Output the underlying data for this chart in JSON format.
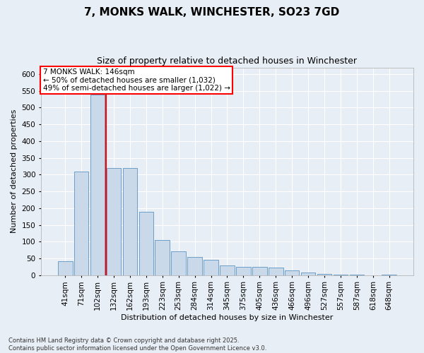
{
  "title": "7, MONKS WALK, WINCHESTER, SO23 7GD",
  "subtitle": "Size of property relative to detached houses in Winchester",
  "xlabel": "Distribution of detached houses by size in Winchester",
  "ylabel": "Number of detached properties",
  "footnote": "Contains HM Land Registry data © Crown copyright and database right 2025.\nContains public sector information licensed under the Open Government Licence v3.0.",
  "annotation_line1": "7 MONKS WALK: 146sqm",
  "annotation_line2": "← 50% of detached houses are smaller (1,032)",
  "annotation_line3": "49% of semi-detached houses are larger (1,022) →",
  "bar_color": "#c9d9ea",
  "bar_edge_color": "#6b9ec8",
  "redline_x": 2.5,
  "categories": [
    "41sqm",
    "71sqm",
    "102sqm",
    "132sqm",
    "162sqm",
    "193sqm",
    "223sqm",
    "253sqm",
    "284sqm",
    "314sqm",
    "345sqm",
    "375sqm",
    "405sqm",
    "436sqm",
    "466sqm",
    "496sqm",
    "527sqm",
    "557sqm",
    "587sqm",
    "618sqm",
    "648sqm"
  ],
  "values": [
    42,
    310,
    540,
    320,
    320,
    190,
    105,
    70,
    55,
    45,
    28,
    24,
    25,
    22,
    15,
    8,
    4,
    2,
    1,
    0,
    2
  ],
  "ylim": [
    0,
    620
  ],
  "yticks": [
    0,
    50,
    100,
    150,
    200,
    250,
    300,
    350,
    400,
    450,
    500,
    550,
    600
  ],
  "background_color": "#e8eef5",
  "plot_bg_color": "#e8eef5",
  "grid_color": "#ffffff",
  "title_fontsize": 11,
  "subtitle_fontsize": 9,
  "xlabel_fontsize": 8,
  "ylabel_fontsize": 8,
  "tick_fontsize": 7.5,
  "annot_fontsize": 7.5,
  "footnote_fontsize": 6
}
